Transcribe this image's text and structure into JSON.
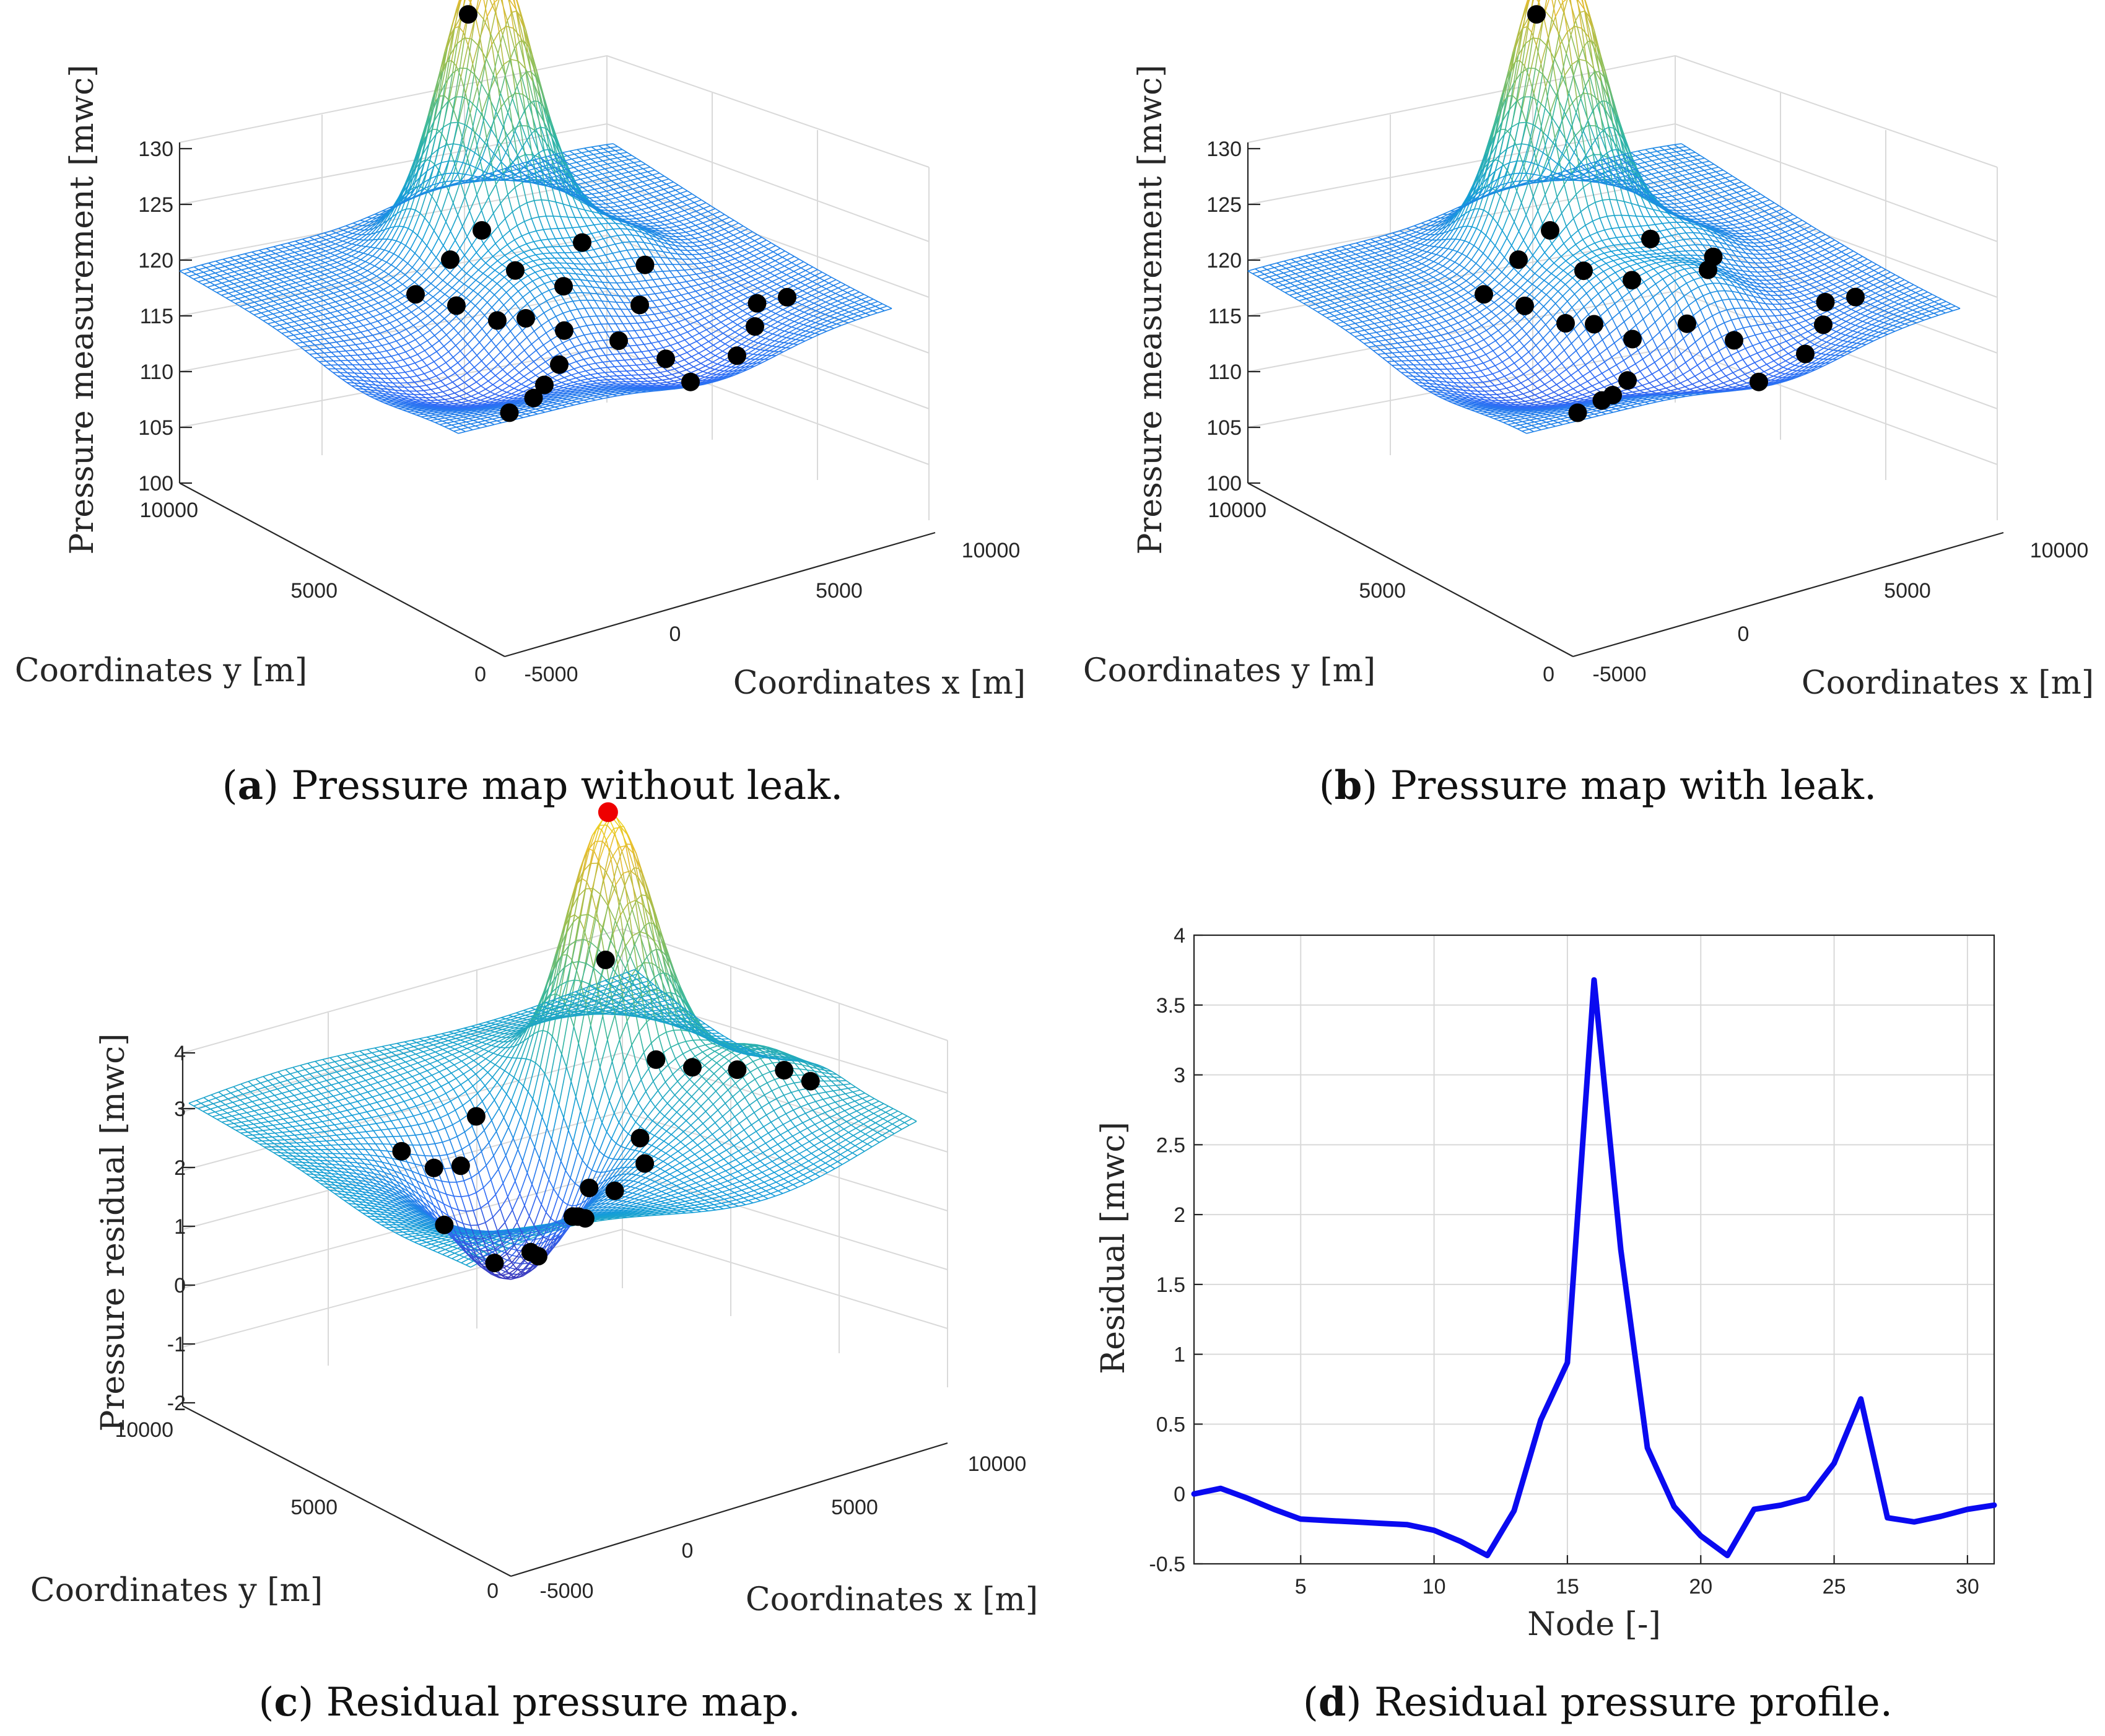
{
  "figure": {
    "captions": [
      {
        "letter": "a",
        "text": ") Pressure map without leak."
      },
      {
        "letter": "b",
        "text": ") Pressure map with leak."
      },
      {
        "letter": "c",
        "text": ") Residual pressure map."
      },
      {
        "letter": "d",
        "text": ") Residual pressure profile."
      }
    ]
  },
  "colors": {
    "line": "#0a0af0",
    "sensor": "#000000",
    "leak": "#ee0000",
    "parula_low": "#3e26a8",
    "parula_high": "#f9fb0e"
  },
  "chart_data": [
    {
      "id": "a",
      "type": "surface3d",
      "zlabel": "Pressure measurement [mwc]",
      "xlabel": "Coordinates x [m]",
      "ylabel": "Coordinates y [m]",
      "zticks": [
        "100",
        "105",
        "110",
        "115",
        "120",
        "125",
        "130"
      ],
      "xticks": [
        "-5000",
        "0",
        "5000",
        "10000"
      ],
      "yticks": [
        "0",
        "5000",
        "10000"
      ],
      "zlim": [
        100,
        132
      ],
      "xlim": [
        -6000,
        12000
      ],
      "ylim": [
        0,
        11000
      ]
    },
    {
      "id": "b",
      "type": "surface3d",
      "zlabel": "Pressure measurement [mwc]",
      "xlabel": "Coordinates x [m]",
      "ylabel": "Coordinates y [m]",
      "zticks": [
        "100",
        "105",
        "110",
        "115",
        "120",
        "125",
        "130"
      ],
      "xticks": [
        "-5000",
        "0",
        "5000",
        "10000"
      ],
      "yticks": [
        "0",
        "5000",
        "10000"
      ],
      "zlim": [
        100,
        132
      ],
      "xlim": [
        -6000,
        12000
      ],
      "ylim": [
        0,
        11000
      ]
    },
    {
      "id": "c",
      "type": "surface3d",
      "zlabel": "Pressure residual [mwc]",
      "xlabel": "Coordinates x [m]",
      "ylabel": "Coordinates y [m]",
      "zticks": [
        "-2",
        "-1",
        "0",
        "1",
        "2",
        "3",
        "4"
      ],
      "xticks": [
        "-5000",
        "0",
        "5000",
        "10000"
      ],
      "yticks": [
        "0",
        "5000",
        "10000"
      ],
      "zlim": [
        -2,
        4
      ],
      "xlim": [
        -6000,
        12000
      ],
      "ylim": [
        0,
        11000
      ]
    },
    {
      "id": "d",
      "type": "line",
      "xlabel": "Node [-]",
      "ylabel": "Residual [mwc]",
      "xlim": [
        1,
        31
      ],
      "ylim": [
        -0.5,
        4
      ],
      "xticks": [
        5,
        10,
        15,
        20,
        25,
        30
      ],
      "yticks": [
        -0.5,
        0,
        0.5,
        1,
        1.5,
        2,
        2.5,
        3,
        3.5,
        4
      ],
      "ytick_labels": [
        "-0.5",
        "0",
        "0.5",
        "1",
        "1.5",
        "2",
        "2.5",
        "3",
        "3.5",
        "4"
      ],
      "xtick_labels": [
        "5",
        "10",
        "15",
        "20",
        "25",
        "30"
      ],
      "grid": true,
      "x": [
        1,
        2,
        3,
        4,
        5,
        6,
        7,
        8,
        9,
        10,
        11,
        12,
        13,
        14,
        15,
        16,
        17,
        18,
        19,
        20,
        21,
        22,
        23,
        24,
        25,
        26,
        27,
        28,
        29,
        30,
        31
      ],
      "values": [
        0.0,
        0.04,
        -0.03,
        -0.11,
        -0.18,
        -0.19,
        -0.2,
        -0.21,
        -0.22,
        -0.26,
        -0.34,
        -0.44,
        -0.12,
        0.53,
        0.94,
        3.68,
        1.75,
        0.33,
        -0.09,
        -0.3,
        -0.44,
        -0.11,
        -0.08,
        -0.03,
        0.22,
        0.68,
        -0.17,
        -0.2,
        -0.16,
        -0.11,
        -0.08
      ]
    }
  ]
}
